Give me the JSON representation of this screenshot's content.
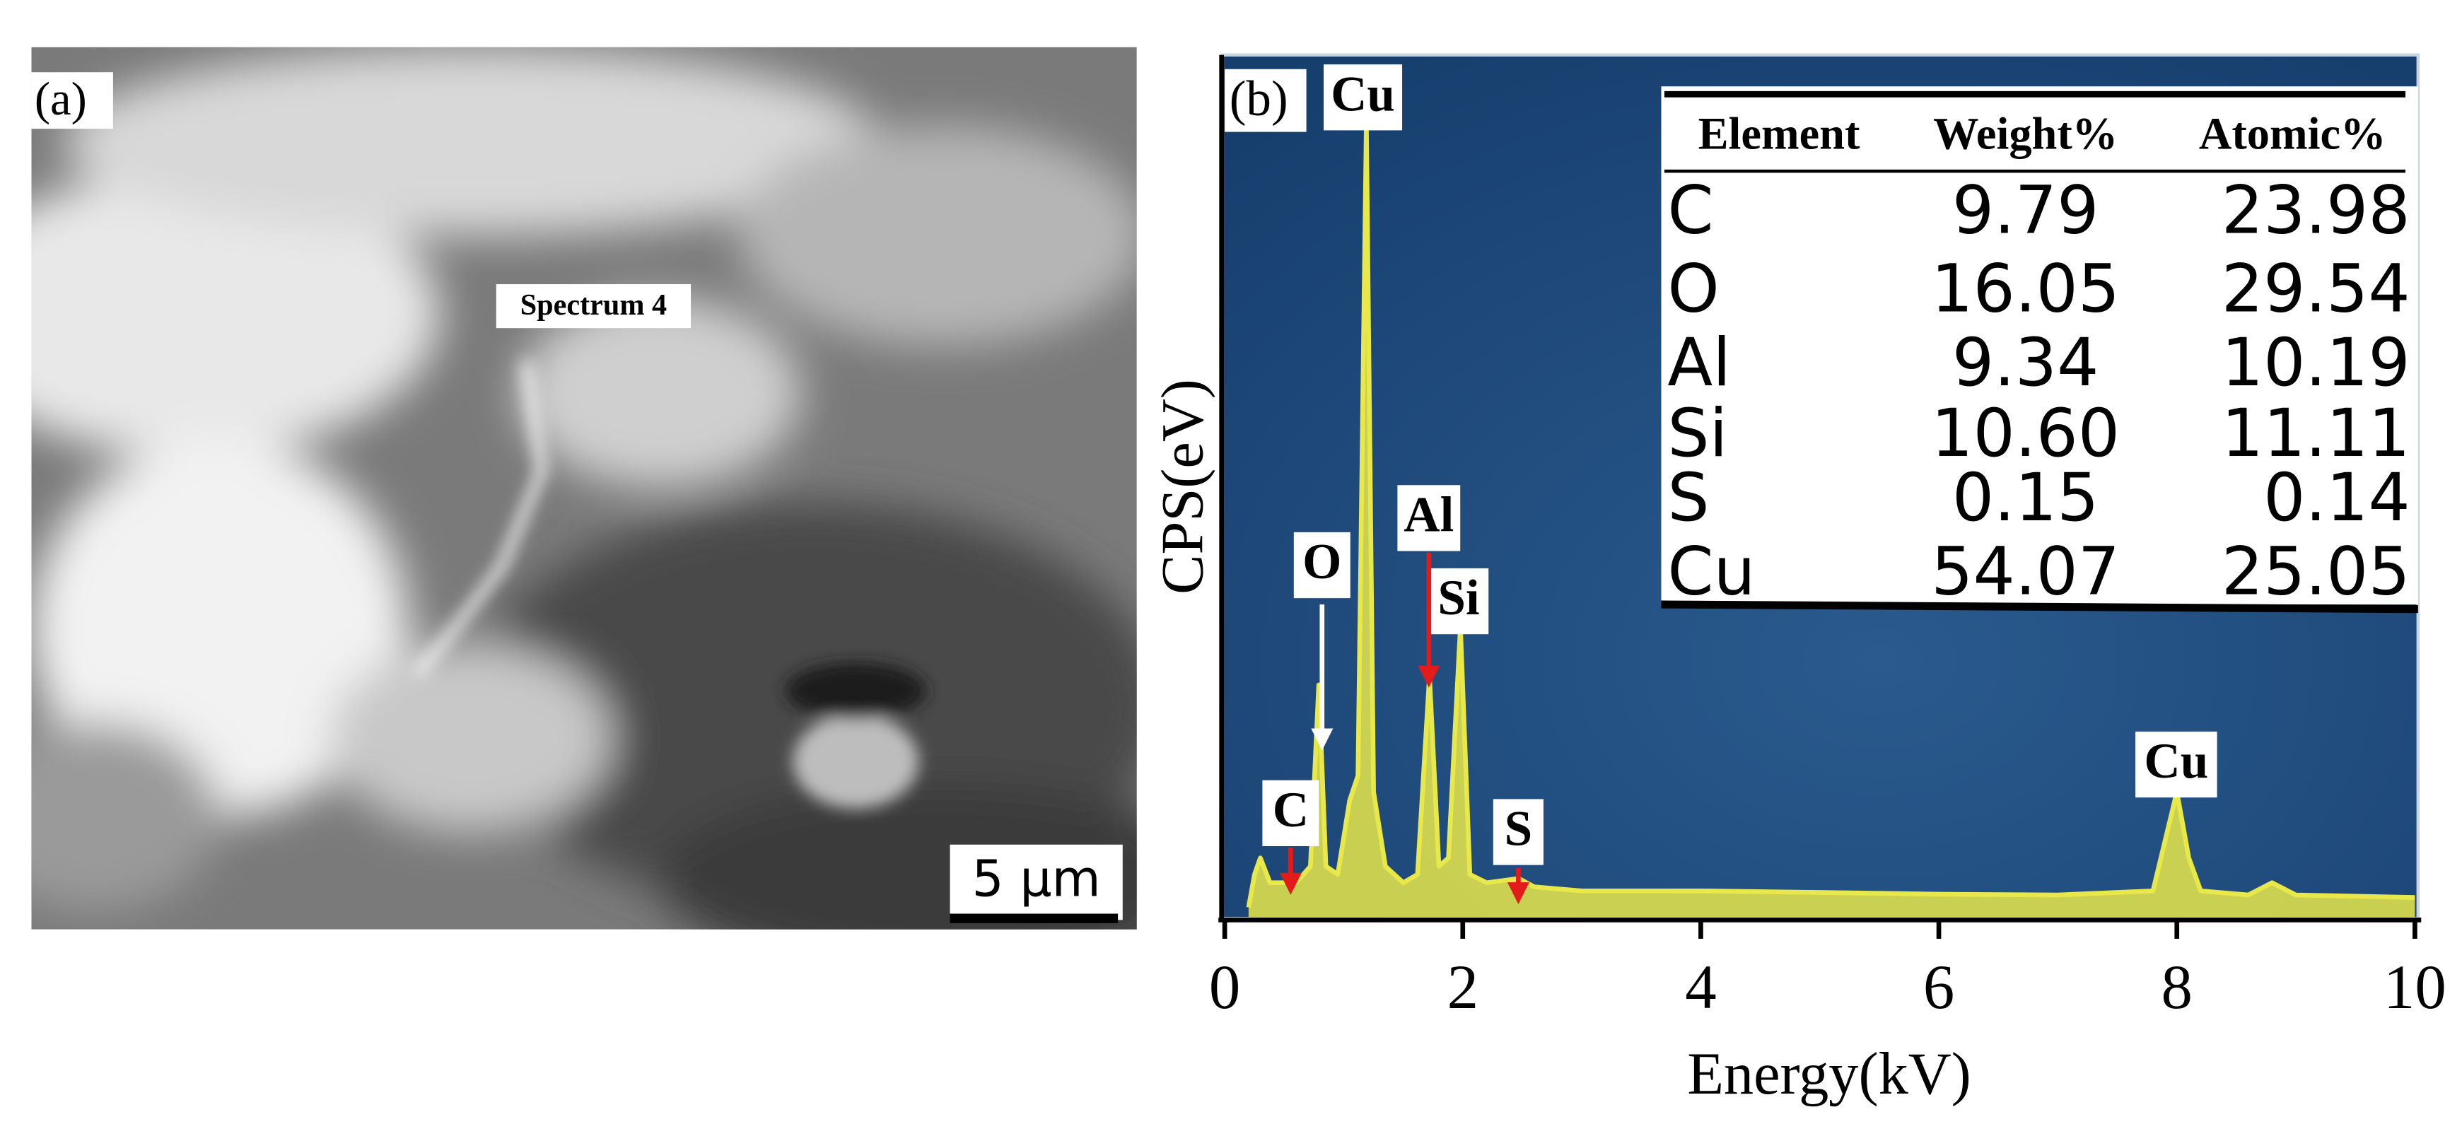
{
  "panel_a": {
    "label": "(a)",
    "spectrum_label": "Spectrum 4",
    "scale_bar": "5 μm"
  },
  "chart_data": {
    "type": "line",
    "panel_label": "(b)",
    "xlabel": "Energy(kV)",
    "ylabel": "CPS(eV)",
    "xlim": [
      0,
      10
    ],
    "xticks": [
      0,
      2,
      4,
      6,
      8,
      10
    ],
    "ylim": [
      0,
      100
    ],
    "x": [
      0.2,
      0.25,
      0.3,
      0.38,
      0.5,
      0.6,
      0.72,
      0.79,
      0.85,
      0.95,
      1.05,
      1.12,
      1.19,
      1.25,
      1.35,
      1.5,
      1.62,
      1.72,
      1.8,
      1.88,
      1.98,
      2.06,
      2.2,
      2.47,
      2.6,
      3,
      4,
      5,
      6,
      7,
      7.8,
      7.9,
      8.0,
      8.1,
      8.2,
      8.6,
      8.8,
      9.0,
      10
    ],
    "values": [
      0,
      4,
      6,
      3,
      3,
      3,
      5,
      27,
      5,
      4,
      13,
      16,
      95,
      14,
      5,
      3,
      4,
      28,
      5,
      6,
      34,
      4,
      3,
      3.5,
      2.5,
      2,
      2,
      1.8,
      1.6,
      1.5,
      2,
      8,
      14,
      6,
      2,
      1.5,
      3,
      1.5,
      1.2
    ],
    "color": "#e8e84a",
    "peak_labels": [
      "Cu",
      "O",
      "Al",
      "Si",
      "C",
      "S",
      "Cu"
    ]
  },
  "table": {
    "header": [
      "Element",
      "Weight%",
      "Atomic%"
    ],
    "rows": [
      [
        "C",
        "9.79",
        "23.98"
      ],
      [
        "O",
        "16.05",
        "29.54"
      ],
      [
        "Al",
        "9.34",
        "10.19"
      ],
      [
        "Si",
        "10.60",
        "11.11"
      ],
      [
        "S",
        "0.15",
        "0.14"
      ],
      [
        "Cu",
        "54.07",
        "25.05"
      ]
    ]
  }
}
